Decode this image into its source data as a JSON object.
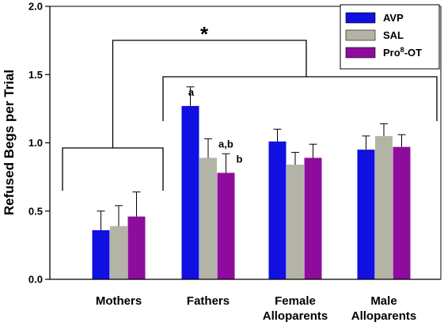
{
  "chart_data": {
    "type": "bar",
    "title": "",
    "xlabel": "",
    "ylabel": "Refused Begs per Trial",
    "ylim": [
      0,
      2.0
    ],
    "yticks": [
      "0.0",
      "0.5",
      "1.0",
      "1.5",
      "2.0"
    ],
    "ytick_values": [
      0,
      0.5,
      1.0,
      1.5,
      2.0
    ],
    "grid": false,
    "legend_position": "top-right",
    "categories": [
      [
        "Mothers"
      ],
      [
        "Fathers"
      ],
      [
        "Female",
        "Alloparents"
      ],
      [
        "Male",
        "Alloparents"
      ]
    ],
    "series": [
      {
        "name": "AVP",
        "color": "#1010e0",
        "values": [
          0.36,
          1.27,
          1.01,
          0.95
        ],
        "errors": [
          0.14,
          0.14,
          0.09,
          0.1
        ]
      },
      {
        "name": "SAL",
        "color": "#b4b4a6",
        "values": [
          0.39,
          0.89,
          0.84,
          1.05
        ],
        "errors": [
          0.15,
          0.14,
          0.09,
          0.09
        ]
      },
      {
        "name": "Pro8-OT",
        "legend_base": "Pro",
        "legend_sup": "8",
        "legend_tail": "-OT",
        "color": "#8e0c9c",
        "values": [
          0.46,
          0.78,
          0.89,
          0.97
        ],
        "errors": [
          0.18,
          0.14,
          0.1,
          0.09
        ]
      }
    ],
    "bar_labels": [
      {
        "series": 0,
        "category": 1,
        "text": "a"
      },
      {
        "series": 1,
        "category": 1,
        "text": "a,b"
      },
      {
        "series": 2,
        "category": 1,
        "text": "b"
      }
    ],
    "significance": {
      "symbol": "*",
      "left_group": [
        0
      ],
      "right_group": [
        1,
        2,
        3
      ]
    }
  }
}
